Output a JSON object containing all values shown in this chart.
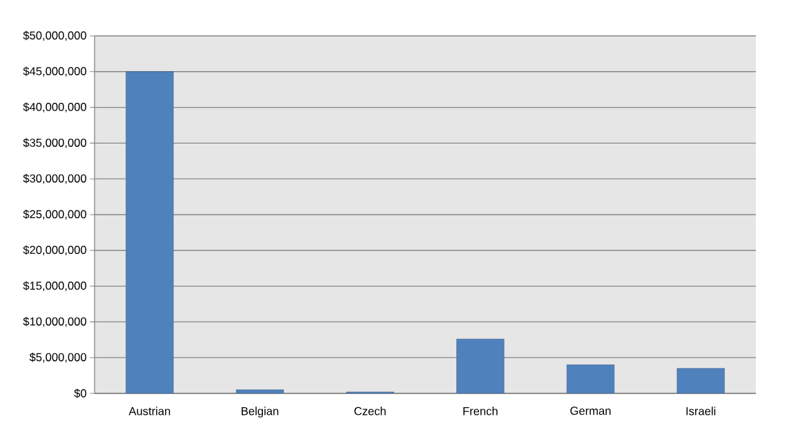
{
  "chart_data": {
    "type": "bar",
    "categories": [
      "Austrian",
      "Belgian",
      "Czech",
      "French",
      "German",
      "Israeli"
    ],
    "values": [
      45000000,
      500000,
      200000,
      7600000,
      4000000,
      3500000
    ],
    "color": "#4f81bd",
    "ylim": [
      0,
      50000000
    ],
    "yticks": [
      {
        "value": 0,
        "label": "$0"
      },
      {
        "value": 5000000,
        "label": "$5,000,000"
      },
      {
        "value": 10000000,
        "label": "$10,000,000"
      },
      {
        "value": 15000000,
        "label": "$15,000,000"
      },
      {
        "value": 20000000,
        "label": "$20,000,000"
      },
      {
        "value": 25000000,
        "label": "$25,000,000"
      },
      {
        "value": 30000000,
        "label": "$30,000,000"
      },
      {
        "value": 35000000,
        "label": "$35,000,000"
      },
      {
        "value": 40000000,
        "label": "$40,000,000"
      },
      {
        "value": 45000000,
        "label": "$45,000,000"
      },
      {
        "value": 50000000,
        "label": "$50,000,000"
      }
    ],
    "grid": "y"
  }
}
